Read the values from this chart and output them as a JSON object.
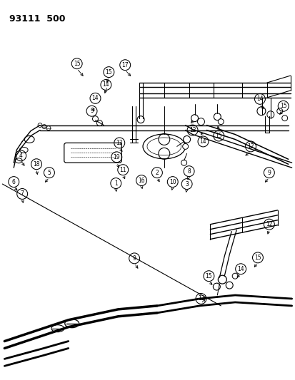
{
  "title": "93111  500",
  "bg": "#ffffff",
  "lc": "#000000",
  "figsize": [
    4.14,
    5.33
  ],
  "dpi": 100,
  "top_labels": [
    [
      107,
      430,
      "15"
    ],
    [
      155,
      455,
      "15"
    ],
    [
      175,
      435,
      "17"
    ],
    [
      152,
      415,
      "14"
    ],
    [
      140,
      398,
      "14"
    ],
    [
      133,
      385,
      "9"
    ],
    [
      30,
      350,
      "4"
    ],
    [
      50,
      360,
      "18"
    ],
    [
      70,
      355,
      "5"
    ],
    [
      20,
      330,
      "6"
    ],
    [
      32,
      310,
      "7"
    ],
    [
      175,
      355,
      "13"
    ],
    [
      168,
      337,
      "19"
    ],
    [
      178,
      320,
      "11"
    ],
    [
      165,
      300,
      "1"
    ],
    [
      200,
      298,
      "16"
    ],
    [
      220,
      310,
      "2"
    ],
    [
      240,
      295,
      "10"
    ],
    [
      260,
      320,
      "8"
    ],
    [
      260,
      298,
      "3"
    ],
    [
      272,
      390,
      "12"
    ],
    [
      285,
      370,
      "14"
    ],
    [
      305,
      380,
      "15"
    ],
    [
      363,
      415,
      "14"
    ],
    [
      395,
      420,
      "15"
    ],
    [
      355,
      380,
      "12"
    ],
    [
      380,
      355,
      "9"
    ]
  ],
  "bot_labels": [
    [
      185,
      165,
      "9"
    ],
    [
      280,
      118,
      "12"
    ],
    [
      290,
      148,
      "15"
    ],
    [
      335,
      150,
      "14"
    ],
    [
      360,
      138,
      "15"
    ],
    [
      375,
      168,
      "12"
    ]
  ]
}
